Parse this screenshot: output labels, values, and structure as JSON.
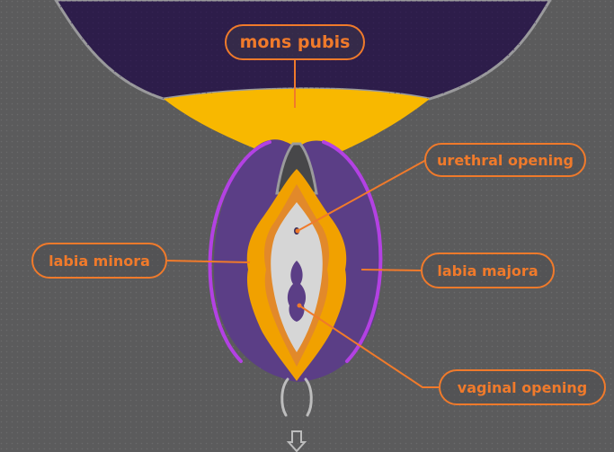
{
  "diagram": {
    "labels": {
      "mons_pubis": "mons pubis",
      "urethral_opening": "urethral opening",
      "labia_minora": "labia minora",
      "labia_majora": "labia majora",
      "vaginal_opening": "vaginal opening"
    }
  },
  "colors": {
    "background": "#5b5b5c",
    "torso": "#2d1d4a",
    "mons": "#f8b800",
    "labia_majora": "#5b3e86",
    "labia_majora_outline": "#b341e3",
    "labia_minora": "#f1a100",
    "inner_area": "#d6d6d6",
    "label_accent": "#f07a2b"
  }
}
